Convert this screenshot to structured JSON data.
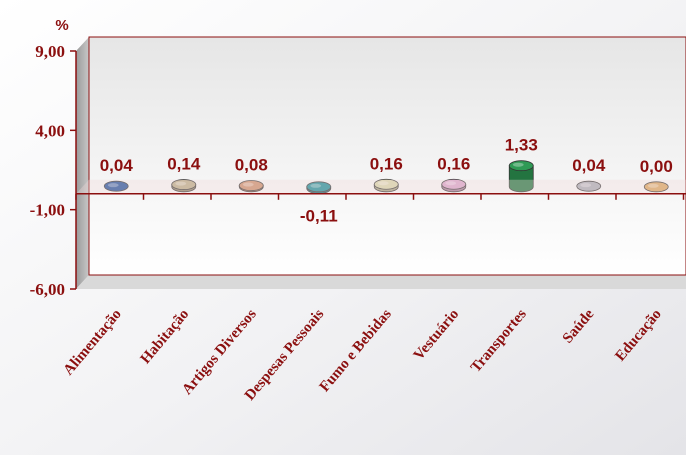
{
  "chart_data": {
    "type": "bar",
    "y_unit": "%",
    "categories": [
      "Alimentação",
      "Habitação",
      "Artigos Diversos",
      "Despesas Pessoais",
      "Fumo e Bebidas",
      "Vestuário",
      "Transportes",
      "Saúde",
      "Educação"
    ],
    "values": [
      0.04,
      0.14,
      0.08,
      -0.11,
      0.16,
      0.16,
      1.33,
      0.04,
      0.0
    ],
    "data_labels": [
      "0,04",
      "0,14",
      "0,08",
      "-0,11",
      "0,16",
      "0,16",
      "1,33",
      "0,04",
      "0,00"
    ],
    "y_ticks": [
      9.0,
      4.0,
      -1.0,
      -6.0
    ],
    "y_tick_labels": [
      "9,00",
      "4,00",
      "-1,00",
      "-6,00"
    ],
    "ylim": [
      -6,
      9
    ],
    "grid": false,
    "legend": "none",
    "colors": {
      "text": "#8b0f0f",
      "axis": "#8b0f0f",
      "series": [
        "#1f4e99",
        "#b9ab86",
        "#c98d69",
        "#1a8a95",
        "#d6d4a8",
        "#d8a2c8",
        "#2f9a55",
        "#a7a9b3",
        "#d7a35e"
      ]
    }
  }
}
